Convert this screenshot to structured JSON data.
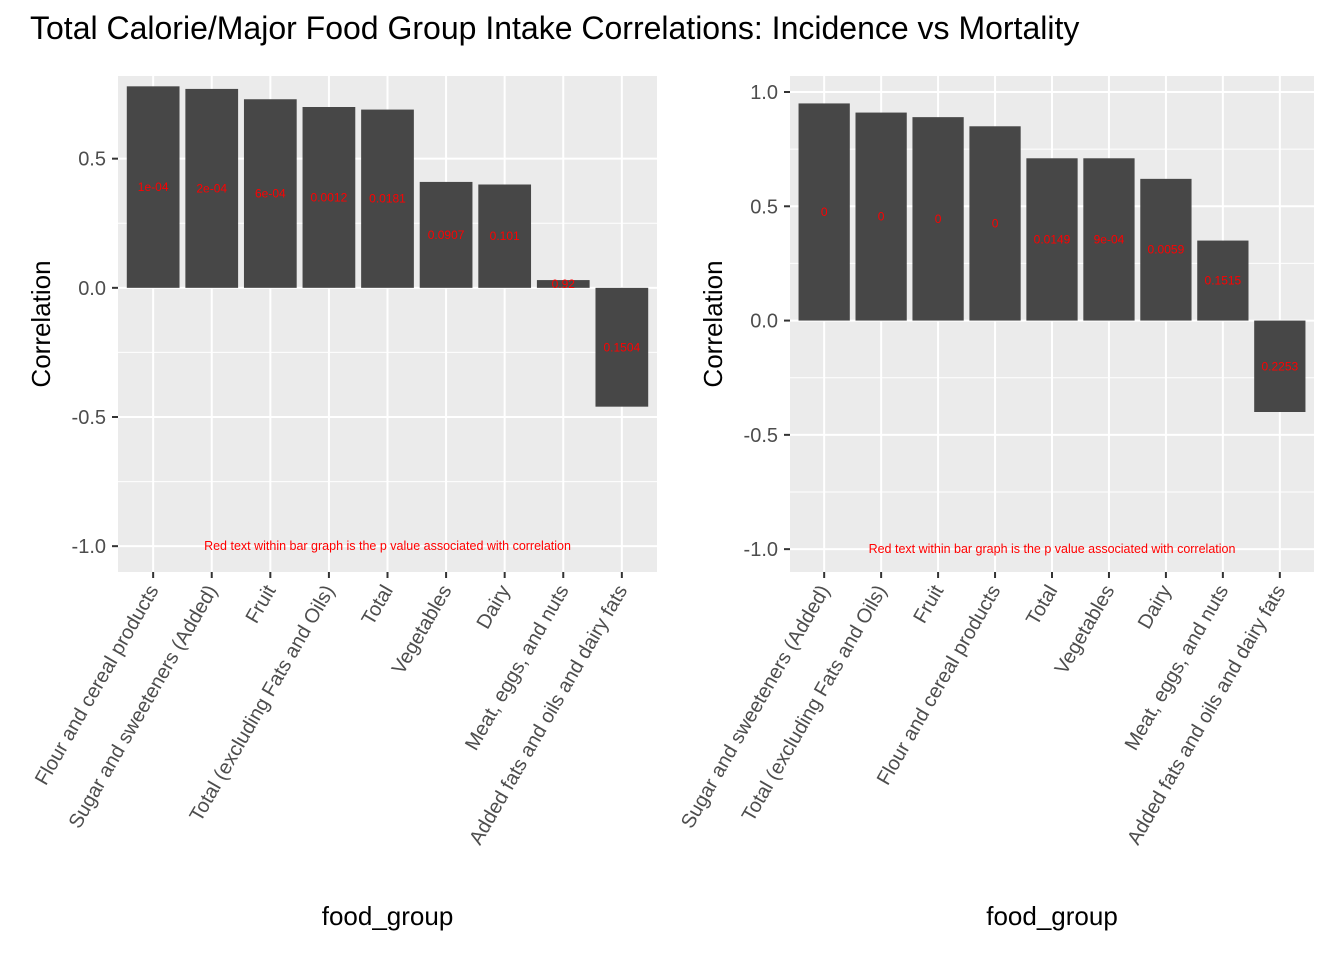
{
  "title": "Total Calorie/Major Food Group Intake Correlations: Incidence vs Mortality",
  "chart_data": [
    {
      "type": "bar",
      "title": "",
      "xlabel": "food_group",
      "ylabel": "Correlation",
      "ylim": [
        -1.1,
        0.82
      ],
      "yticks": [
        -1.0,
        -0.5,
        0.0,
        0.5
      ],
      "ytick_labels": [
        "-1.0",
        "-0.5",
        "0.0",
        "0.5"
      ],
      "grid": true,
      "bar_color": "#474747",
      "label_color": "#ff0000",
      "categories": [
        "Flour and cereal products",
        "Sugar and sweeteners (Added)",
        "Fruit",
        "Total (excluding Fats and Oils)",
        "Total",
        "Vegetables",
        "Dairy",
        "Meat, eggs, and nuts",
        "Added fats and oils and dairy fats"
      ],
      "values": [
        0.78,
        0.77,
        0.73,
        0.7,
        0.69,
        0.41,
        0.4,
        0.03,
        -0.46
      ],
      "p_values": [
        "1e-04",
        "2e-04",
        "6e-04",
        "0.0012",
        "0.0181",
        "0.0907",
        "0.101",
        "0.92",
        "0.1504"
      ],
      "annotation": "Red text within bar graph is the p value associated with correlation",
      "annotation_y": -1.0
    },
    {
      "type": "bar",
      "title": "",
      "xlabel": "food_group",
      "ylabel": "Correlation",
      "ylim": [
        -1.1,
        1.07
      ],
      "yticks": [
        -1.0,
        -0.5,
        0.0,
        0.5,
        1.0
      ],
      "ytick_labels": [
        "-1.0",
        "-0.5",
        "0.0",
        "0.5",
        "1.0"
      ],
      "grid": true,
      "bar_color": "#474747",
      "label_color": "#ff0000",
      "categories": [
        "Sugar and sweeteners (Added)",
        "Total (excluding Fats and Oils)",
        "Fruit",
        "Flour and cereal products",
        "Total",
        "Vegetables",
        "Dairy",
        "Meat, eggs, and nuts",
        "Added fats and oils and dairy fats"
      ],
      "values": [
        0.95,
        0.91,
        0.89,
        0.85,
        0.71,
        0.71,
        0.62,
        0.35,
        -0.4
      ],
      "p_values": [
        "0",
        "0",
        "0",
        "0",
        "0.0149",
        "9e-04",
        "0.0059",
        "0.1515",
        "0.2253"
      ],
      "annotation": "Red text within bar graph is the p value associated with correlation",
      "annotation_y": -1.0
    }
  ]
}
